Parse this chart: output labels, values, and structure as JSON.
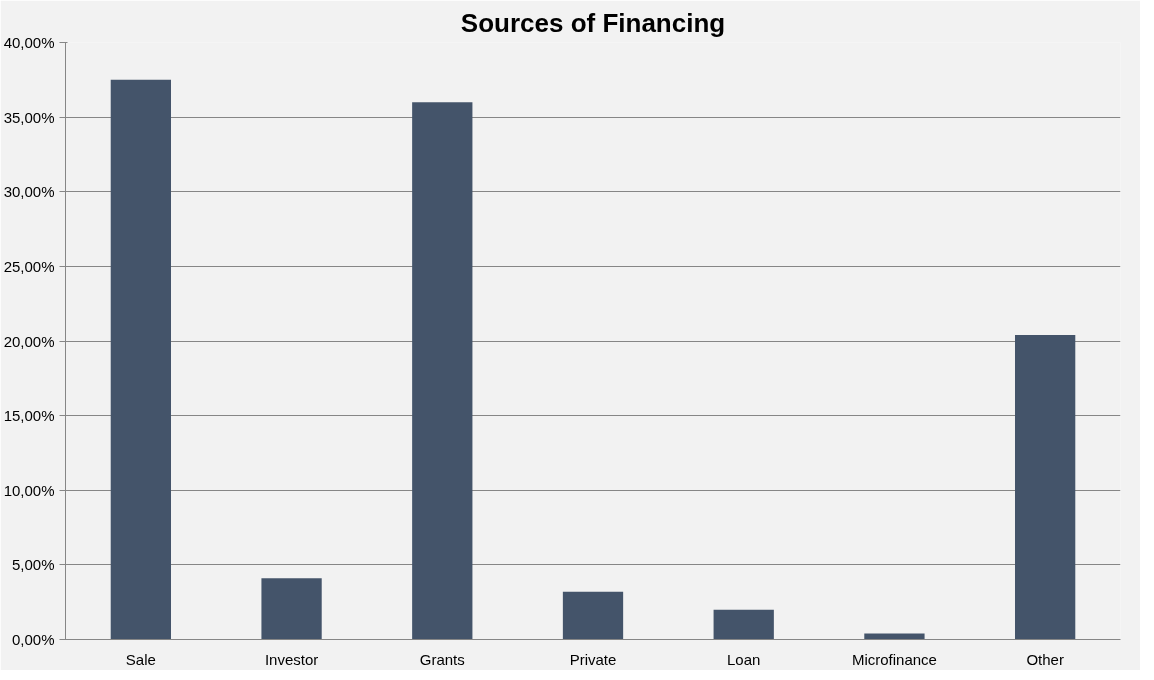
{
  "chart_data": {
    "type": "bar",
    "title": "Sources of Financing",
    "categories": [
      "Sale",
      "Investor",
      "Grants",
      "Private",
      "Loan",
      "Microfinance",
      "Other"
    ],
    "values": [
      37.5,
      4.1,
      36.0,
      3.2,
      2.0,
      0.4,
      20.4
    ],
    "color": "#44546a",
    "ylim": [
      0,
      40
    ],
    "yticks": [
      {
        "value": 0,
        "label": "0,00%"
      },
      {
        "value": 5,
        "label": "5,00%"
      },
      {
        "value": 10,
        "label": "10,00%"
      },
      {
        "value": 15,
        "label": "15,00%"
      },
      {
        "value": 20,
        "label": "20,00%"
      },
      {
        "value": 25,
        "label": "25,00%"
      },
      {
        "value": 30,
        "label": "30,00%"
      },
      {
        "value": 35,
        "label": "35,00%"
      },
      {
        "value": 40,
        "label": "40,00%"
      }
    ],
    "grid": "y"
  }
}
